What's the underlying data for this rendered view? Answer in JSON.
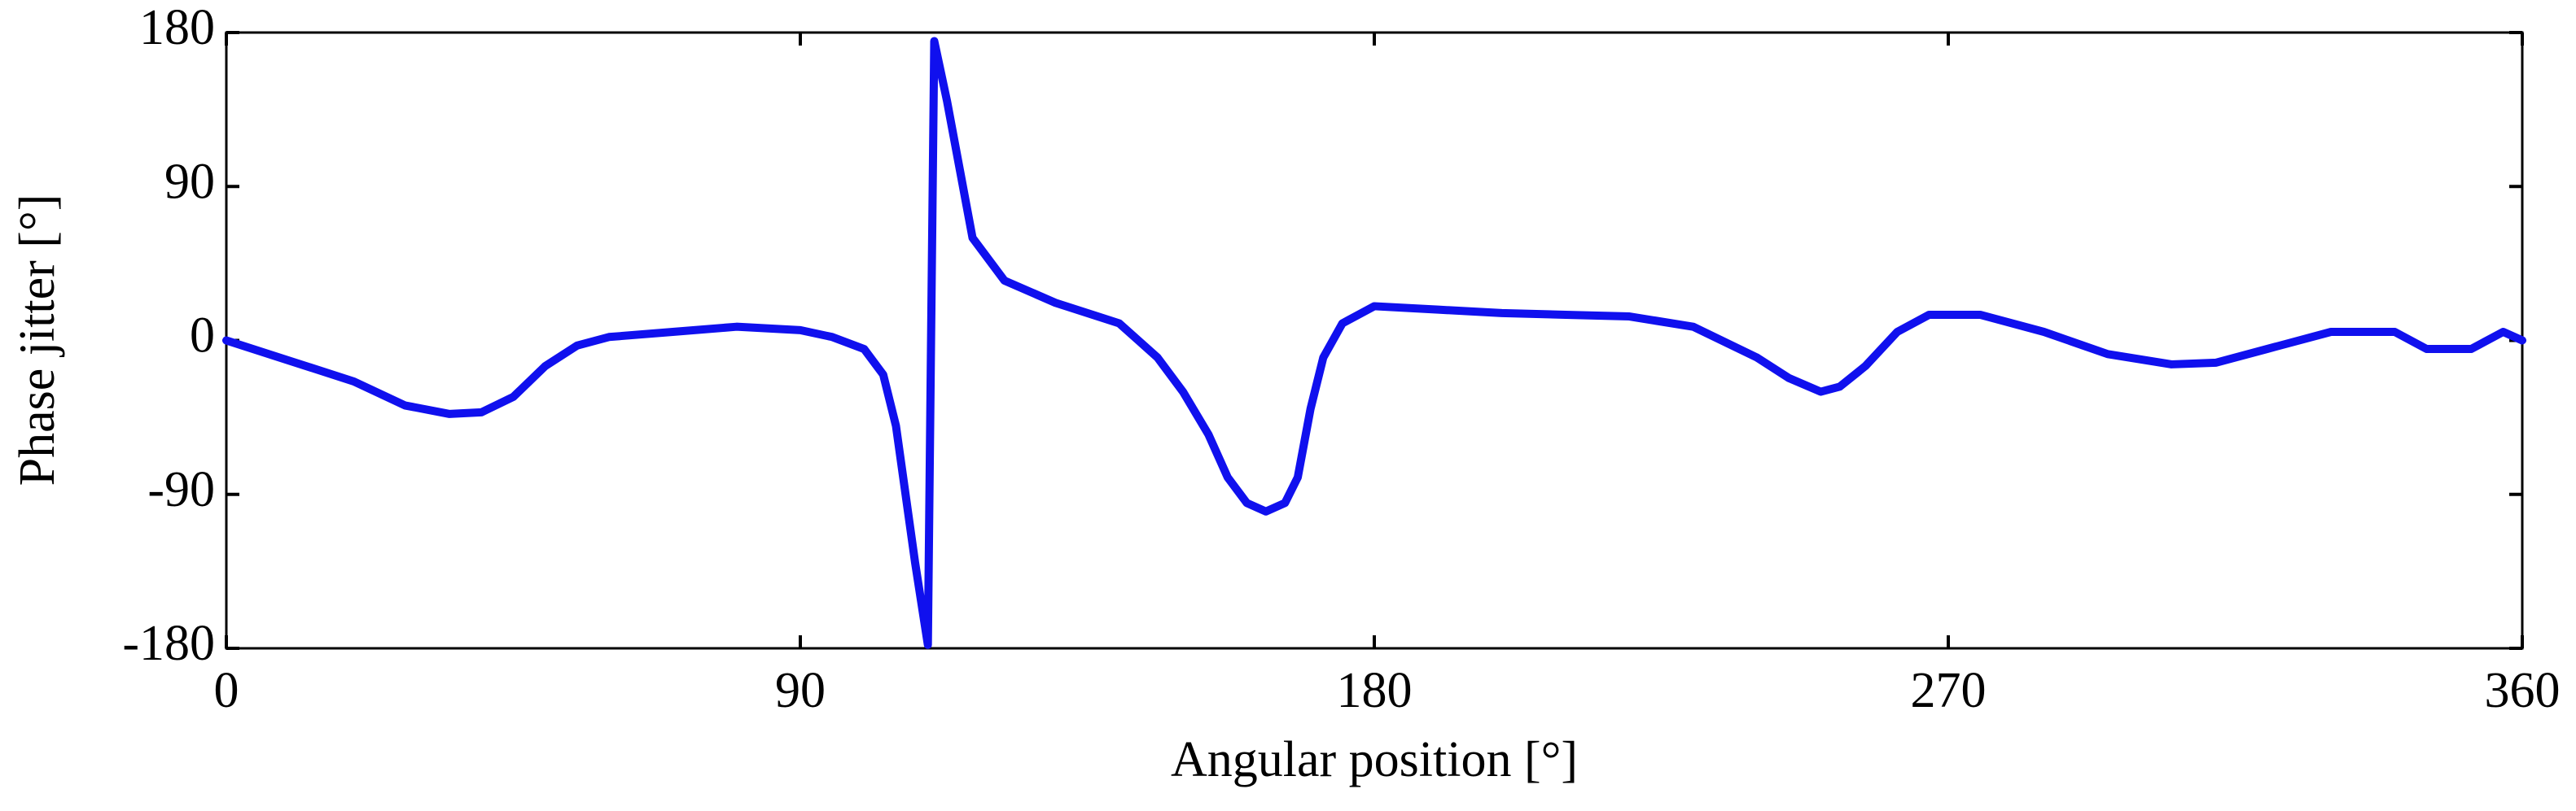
{
  "chart_data": {
    "type": "line",
    "xlabel": "Angular position [°]",
    "ylabel": "Phase jitter [°]",
    "color": "#1010ee",
    "x": [
      0,
      10,
      20,
      28,
      35,
      40,
      45,
      50,
      55,
      60,
      70,
      80,
      90,
      95,
      100,
      103,
      105,
      106.5,
      108,
      110,
      110.5,
      111,
      113,
      115,
      117,
      120,
      122,
      130,
      140,
      146,
      150,
      154,
      157,
      160,
      163,
      166,
      168,
      170,
      172,
      175,
      180,
      190,
      200,
      210,
      220,
      230,
      240,
      245,
      250,
      253,
      257,
      262,
      267,
      275,
      285,
      295,
      305,
      312,
      320,
      330,
      340,
      345,
      352,
      357,
      360
    ],
    "values": [
      0,
      -12,
      -24,
      -38,
      -43,
      -42,
      -33,
      -15,
      -3,
      2,
      5,
      8,
      6,
      2,
      -5,
      -20,
      -50,
      -90,
      -130,
      -178,
      0,
      175,
      140,
      100,
      60,
      45,
      35,
      22,
      10,
      -10,
      -30,
      -55,
      -80,
      -95,
      -100,
      -95,
      -80,
      -40,
      -10,
      10,
      20,
      18,
      16,
      15,
      14,
      8,
      -10,
      -22,
      -30,
      -27,
      -15,
      5,
      15,
      15,
      5,
      -8,
      -14,
      -13,
      -5,
      5,
      5,
      -5,
      -5,
      5,
      0
    ],
    "xlim": [
      0,
      360
    ],
    "xticks": [
      0,
      90,
      180,
      270,
      360
    ],
    "ylim": [
      -180,
      180
    ],
    "yticks": [
      -180,
      -90,
      0,
      90,
      180
    ],
    "grid": false
  }
}
